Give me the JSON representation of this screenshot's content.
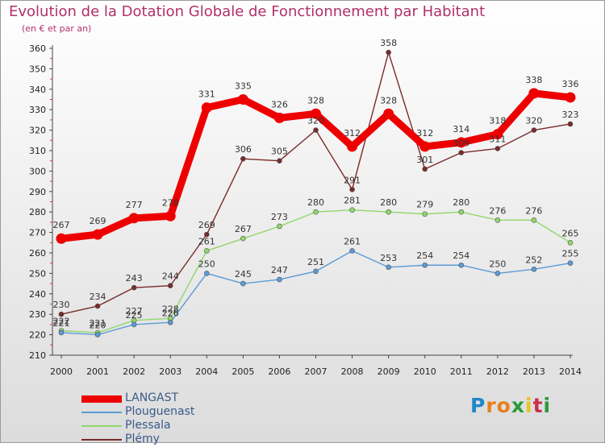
{
  "title": "Evolution de la Dotation Globale de Fonctionnement par Habitant",
  "subtitle": "(en € et par an)",
  "brand": {
    "text": "Proxiti",
    "letter_colors": [
      "#1e88c8",
      "#e8801e",
      "#e8801e",
      "#2a9a3a",
      "#e8c41e",
      "#c83050",
      "#2a9a3a"
    ]
  },
  "chart_data": {
    "type": "line",
    "x": [
      "2000",
      "2001",
      "2002",
      "2003",
      "2004",
      "2005",
      "2006",
      "2007",
      "2008",
      "2009",
      "2010",
      "2011",
      "2012",
      "2013",
      "2014"
    ],
    "ylim": [
      210,
      360
    ],
    "yticks": [
      210,
      220,
      230,
      240,
      250,
      260,
      270,
      280,
      290,
      300,
      310,
      320,
      330,
      340,
      350,
      360
    ],
    "grid": false,
    "legend_position": "bottom-left",
    "series": [
      {
        "name": "LANGAST",
        "color": "#ee0000",
        "values": [
          267,
          269,
          277,
          278,
          331,
          335,
          326,
          328,
          312,
          328,
          312,
          314,
          318,
          338,
          336
        ],
        "labels": [
          "267",
          "269",
          "277",
          "278",
          "331",
          "335",
          "326",
          "328",
          "312",
          "328",
          "312",
          "314",
          "318",
          "338",
          "336"
        ]
      },
      {
        "name": "Plouguenast",
        "color": "#5b9bd5",
        "values": [
          221,
          220,
          225,
          226,
          250,
          245,
          247,
          251,
          261,
          253,
          254,
          254,
          250,
          252,
          255
        ],
        "labels": [
          "221",
          "220",
          "225",
          "226",
          "250",
          "245",
          "247",
          "251",
          "261",
          "253",
          "254",
          "254",
          "250",
          "252",
          "255"
        ]
      },
      {
        "name": "Plessala",
        "color": "#8fd86a",
        "values": [
          222,
          221,
          227,
          228,
          261,
          267,
          273,
          280,
          281,
          280,
          279,
          280,
          276,
          276,
          265
        ],
        "labels": [
          "222",
          "221",
          "227",
          "228",
          "261",
          "267",
          "273",
          "280",
          "281",
          "280",
          "279",
          "280",
          "276",
          "276",
          "265"
        ]
      },
      {
        "name": "Plémy",
        "color": "#7a2a2a",
        "values": [
          230,
          234,
          243,
          244,
          269,
          306,
          305,
          320,
          291,
          358,
          301,
          309,
          311,
          320,
          323
        ],
        "labels": [
          "230",
          "234",
          "243",
          "244",
          "269",
          "306",
          "305",
          "320",
          "291",
          "358",
          "301",
          "309",
          "311",
          "320",
          "323"
        ]
      }
    ]
  }
}
